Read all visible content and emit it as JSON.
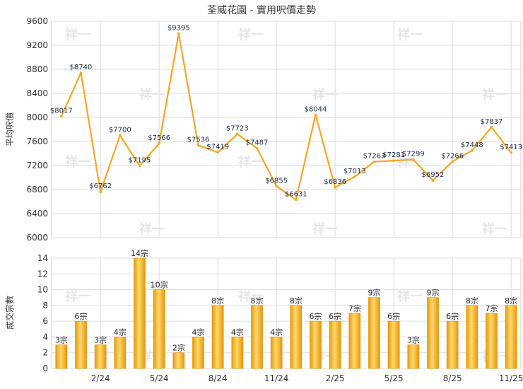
{
  "chart_data": [
    {
      "type": "line",
      "title": "荃威花園 - 實用呎價走勢",
      "ylabel": "平均呎價",
      "ylim": [
        6000,
        9600
      ],
      "yticks": [
        6000,
        6400,
        6800,
        7200,
        7600,
        8000,
        8400,
        8800,
        9200,
        9600
      ],
      "xticks": [
        "2/24",
        "5/24",
        "8/24",
        "11/24",
        "2/25",
        "5/25",
        "8/25",
        "11/25"
      ],
      "x": [
        "12/23",
        "1/24",
        "2/24",
        "3/24",
        "4/24",
        "5/24",
        "6/24",
        "7/24",
        "8/24",
        "9/24",
        "10/24",
        "11/24",
        "12/24",
        "1/25",
        "2/25",
        "3/25",
        "4/25",
        "5/25",
        "6/25",
        "7/25",
        "8/25",
        "9/25",
        "10/25",
        "11/25"
      ],
      "values": [
        8017,
        8740,
        6762,
        7700,
        7195,
        7566,
        9395,
        7536,
        7419,
        7723,
        7487,
        6855,
        6631,
        8044,
        6836,
        7013,
        7263,
        7281,
        7299,
        6952,
        7266,
        7448,
        7837,
        7413
      ],
      "data_labels": [
        "$8017",
        "$8740",
        "$6762",
        "$7700",
        "$7195",
        "$7566",
        "$9395",
        "$7536",
        "$7419",
        "$7723",
        "$7487",
        "$6855",
        "$6631",
        "$8044",
        "$6836",
        "$7013",
        "$7263",
        "$7281",
        "$7299",
        "$6952",
        "$7266",
        "$7448",
        "$7837",
        "$7413"
      ],
      "color": "#f5a623",
      "grid": true
    },
    {
      "type": "bar",
      "ylabel": "成交宗數",
      "ylim": [
        0,
        14
      ],
      "yticks": [
        0,
        2,
        4,
        6,
        8,
        10,
        12,
        14
      ],
      "xticks": [
        "2/24",
        "5/24",
        "8/24",
        "11/24",
        "2/25",
        "5/25",
        "8/25",
        "11/25"
      ],
      "x": [
        "12/23",
        "1/24",
        "2/24",
        "3/24",
        "4/24",
        "5/24",
        "6/24",
        "7/24",
        "8/24",
        "9/24",
        "10/24",
        "11/24",
        "12/24",
        "1/25",
        "2/25",
        "3/25",
        "4/25",
        "5/25",
        "6/25",
        "7/25",
        "8/25",
        "9/25",
        "10/25",
        "11/25"
      ],
      "values": [
        3,
        6,
        3,
        4,
        14,
        10,
        2,
        4,
        8,
        4,
        8,
        4,
        8,
        6,
        6,
        7,
        9,
        6,
        3,
        9,
        6,
        8,
        7,
        8
      ],
      "data_labels": [
        "3宗",
        "6宗",
        "3宗",
        "4宗",
        "14宗",
        "10宗",
        "2宗",
        "4宗",
        "8宗",
        "4宗",
        "8宗",
        "4宗",
        "8宗",
        "6宗",
        "6宗",
        "7宗",
        "9宗",
        "6宗",
        "3宗",
        "9宗",
        "6宗",
        "8宗",
        "7宗",
        "8宗"
      ],
      "color": "#f5b316",
      "grid": true
    }
  ],
  "watermark": "祥一"
}
